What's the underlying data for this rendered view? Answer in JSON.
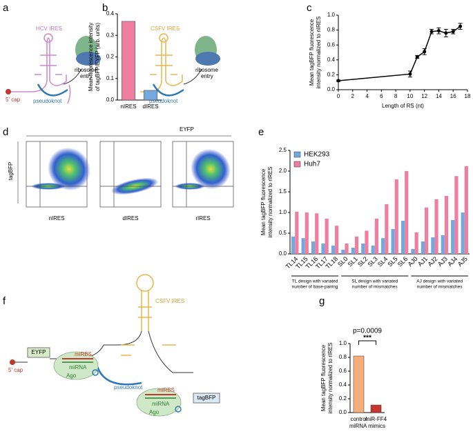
{
  "panels": [
    "a",
    "b",
    "c",
    "d",
    "e",
    "f",
    "g"
  ],
  "panel_a": {
    "labels": [
      "HCV IRES",
      "CSFV IRES",
      "5' cap",
      "ribosome",
      "entry",
      "pseudoknot",
      "ribosome",
      "entry",
      "pseudoknot"
    ]
  },
  "panel_d": {
    "x_label": "EYFP",
    "y_label": "tagBFP",
    "samples": [
      "nIRES",
      "dIRES",
      "rIRES"
    ]
  },
  "panel_f": {
    "labels": [
      "CSFV IRES",
      "EYFP",
      "5' cap",
      "miRBS",
      "miRNA",
      "Ago",
      "pseudoknot",
      "miRBS",
      "miRNA",
      "Ago",
      "tagBFP"
    ]
  },
  "chart_data": [
    {
      "type": "bar",
      "categories": [
        "nIRES",
        "dIRES"
      ],
      "values": [
        0.365,
        0.045
      ],
      "colors": [
        "#ee7fa0",
        "#74a9e0"
      ],
      "ylabel": [
        "Mean fluorescence intensity",
        "of tagBFP/EYFP (arb. units)"
      ],
      "ylim": [
        0,
        0.4
      ],
      "yticks": [
        {
          "value": 0,
          "label": "0.0"
        },
        0.1,
        0.2,
        0.3,
        0.4
      ]
    },
    {
      "type": "line",
      "x": [
        0,
        10,
        11,
        12,
        13,
        14,
        15,
        16,
        17
      ],
      "values": [
        0.12,
        0.21,
        0.44,
        0.51,
        0.78,
        0.79,
        0.76,
        0.78,
        0.85
      ],
      "errors": [
        0.01,
        0.04,
        0.02,
        0.04,
        0.03,
        0.04,
        0.05,
        0.03,
        0.04
      ],
      "color": "#000000",
      "xlabel": "Length of RS (nt)",
      "ylabel": [
        "Mean tagBFP fluorescence",
        "intensity normalized to nIRES"
      ],
      "xlim": [
        0,
        18
      ],
      "xticks": [
        0,
        2,
        4,
        6,
        8,
        10,
        12,
        14,
        16,
        18
      ],
      "ylim": [
        0,
        1
      ],
      "yticks": [
        {
          "value": 0,
          "label": "0.0"
        },
        0.2,
        0.4,
        0.6,
        0.8,
        {
          "value": 1,
          "label": "1.0"
        }
      ]
    },
    {
      "type": "bar",
      "categories": [
        "TL14",
        "TL15",
        "TL16",
        "TL17",
        "TL18",
        "SL0",
        "SL1",
        "SL2",
        "SL3",
        "SL4",
        "SL5",
        "SL6",
        "AJ0",
        "AJ1",
        "AJ2",
        "AJ3",
        "AJ4",
        "AJ5"
      ],
      "series": [
        {
          "name": "HEK293",
          "color": "#74a9e0",
          "values": [
            0.42,
            0.38,
            0.3,
            0.25,
            0.2,
            0.1,
            0.15,
            0.25,
            0.2,
            0.38,
            0.6,
            0.8,
            0.12,
            0.3,
            0.4,
            0.45,
            0.82,
            1.0
          ]
        },
        {
          "name": "Huh7",
          "color": "#ee7fa0",
          "values": [
            1.02,
            1.0,
            0.98,
            0.85,
            0.68,
            0.25,
            0.42,
            0.56,
            0.85,
            1.2,
            1.8,
            2.0,
            0.52,
            1.12,
            1.32,
            1.4,
            1.88,
            2.12
          ]
        }
      ],
      "group_labels": [
        [
          "TL design with variated",
          "number of base-pairing"
        ],
        [
          "SL design with variated",
          "number of mismatches"
        ],
        [
          "AJ design with variated",
          "number of mismatches"
        ]
      ],
      "ylabel": [
        "Mean tagBFP fluorescence",
        "intensity normalized to rIRES"
      ],
      "ylim": [
        0,
        2.5
      ],
      "yticks": [
        {
          "value": 0,
          "label": "0.0"
        },
        0.5,
        {
          "value": 1,
          "label": "1.0"
        },
        1.5,
        {
          "value": 2,
          "label": "2.0"
        },
        2.5
      ],
      "legend": "upper left"
    },
    {
      "type": "bar",
      "categories": [
        "control",
        "miR-FF4"
      ],
      "values": [
        0.82,
        0.11
      ],
      "colors": [
        "#f5ad7a",
        "#c4382c"
      ],
      "xlabel": "miRNA mimics",
      "annotations": [
        "p=0.0009",
        "***"
      ],
      "ylabel": [
        "Mean tagBFP fluorescence",
        "intensity normalized to rIRES"
      ],
      "ylim": [
        0,
        1
      ],
      "yticks": [
        {
          "value": 0,
          "label": "0.0"
        },
        0.2,
        0.4,
        0.6,
        0.8,
        {
          "value": 1,
          "label": "1.0"
        }
      ]
    }
  ]
}
